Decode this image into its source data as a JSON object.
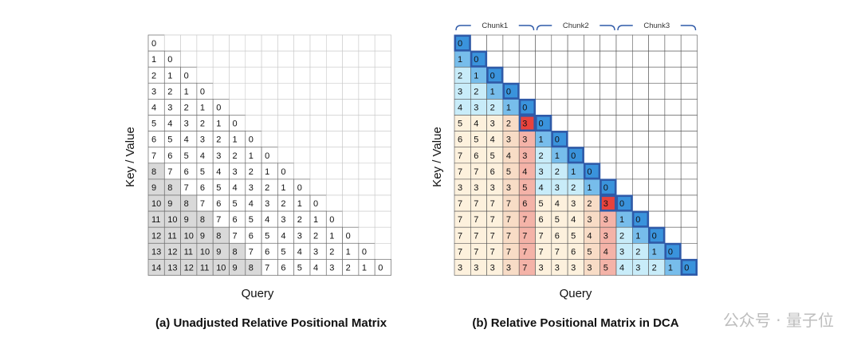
{
  "panel_a": {
    "caption": "(a) Unadjusted Relative Positional Matrix",
    "xlabel": "Query",
    "ylabel": "Key / Value",
    "size": 15,
    "highlight_threshold": 8
  },
  "panel_b": {
    "caption": "(b) Relative Positional Matrix in DCA",
    "xlabel": "Query",
    "ylabel": "Key / Value",
    "size": 15,
    "chunk_size": 5,
    "chunks": [
      "Chunk1",
      "Chunk2",
      "Chunk3"
    ],
    "colors": {
      "blue_strong": "#3a93dc",
      "blue_mid": "#77bdeb",
      "blue_light": "#c8ecf9",
      "red_strong": "#e8433d",
      "red_mid": "#f4b3a8",
      "orange_light": "#f8dcc6",
      "cream": "#fdf1dd",
      "border": "#2f5aa8"
    }
  },
  "watermark": {
    "text": "公众号 · 量子位"
  }
}
